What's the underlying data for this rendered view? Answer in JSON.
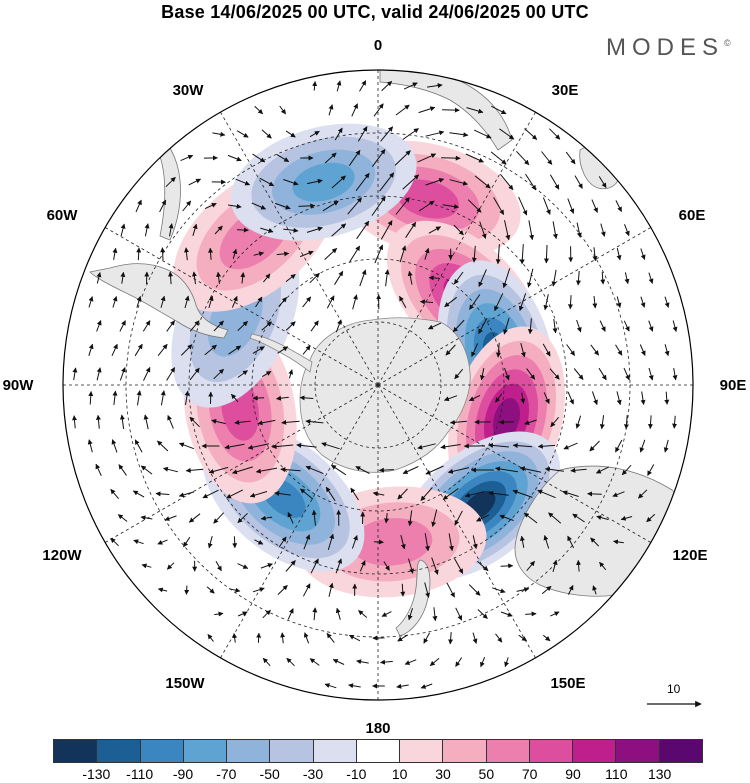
{
  "title": "Base 14/06/2025 00 UTC, valid 24/06/2025 00 UTC",
  "brand": "MODES",
  "brand_mark": "©",
  "longitude_labels": {
    "0": "0",
    "30E": "30E",
    "60E": "60E",
    "90E": "90E",
    "120E": "120E",
    "150E": "150E",
    "180": "180",
    "150W": "150W",
    "120W": "120W",
    "90W": "90W",
    "60W": "60W",
    "30W": "30W"
  },
  "reference_vector": {
    "label": "10"
  },
  "colorbar": {
    "labels": [
      "-130",
      "-110",
      "-90",
      "-70",
      "-50",
      "-30",
      "-10",
      "10",
      "30",
      "50",
      "70",
      "90",
      "110",
      "130"
    ],
    "colors": [
      "#13345a",
      "#1b5f94",
      "#3b86c0",
      "#5ea3d1",
      "#8fb3da",
      "#b7c4e1",
      "#dcdff0",
      "#ffffff",
      "#f9d6dc",
      "#f4aec0",
      "#ec7fad",
      "#dd4f9e",
      "#bf1f8c",
      "#8e1080",
      "#5a0870"
    ]
  },
  "anomaly_centers": [
    {
      "lon": 15,
      "lat": -35,
      "value": 70
    },
    {
      "lon": 45,
      "lat": -55,
      "value": 90
    },
    {
      "lon": 75,
      "lat": -55,
      "value": -110
    },
    {
      "lon": 105,
      "lat": -52,
      "value": 120
    },
    {
      "lon": 140,
      "lat": -45,
      "value": -130
    },
    {
      "lon": 175,
      "lat": -45,
      "value": 50
    },
    {
      "lon": -140,
      "lat": -48,
      "value": -100
    },
    {
      "lon": -100,
      "lat": -50,
      "value": 80
    },
    {
      "lon": -65,
      "lat": -45,
      "value": -50
    },
    {
      "lon": -40,
      "lat": -35,
      "value": 60
    },
    {
      "lon": -15,
      "lat": -30,
      "value": -70
    }
  ]
}
